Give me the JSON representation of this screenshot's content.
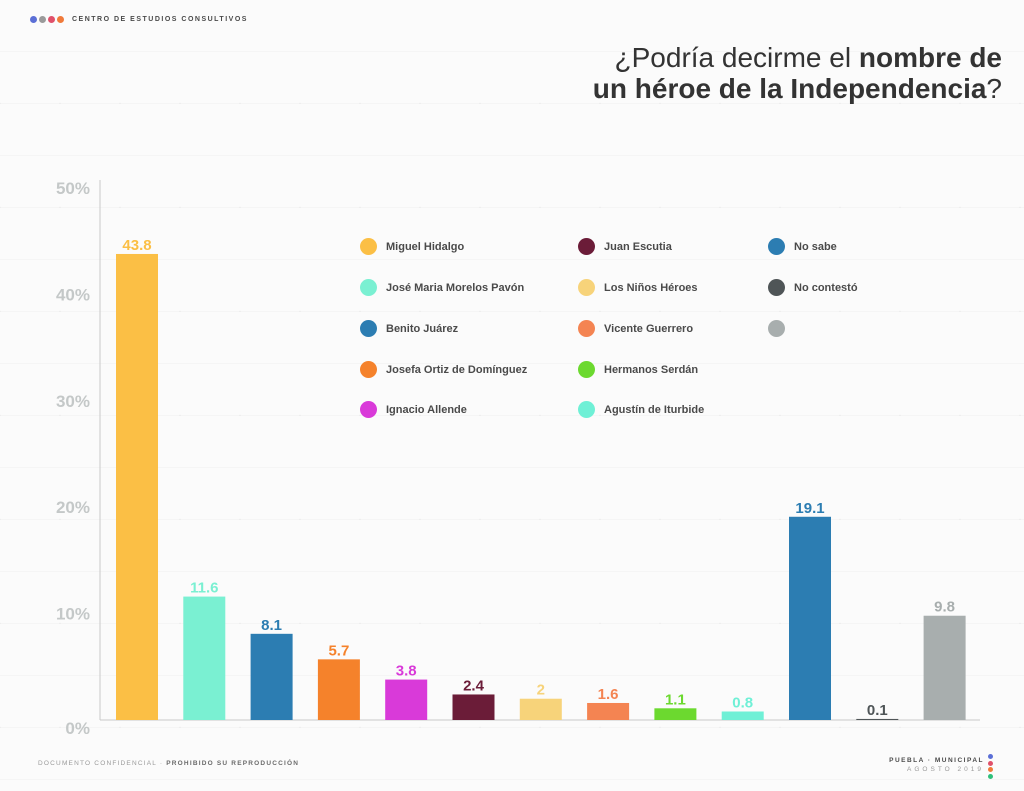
{
  "header": {
    "brand": "CENTRO DE ESTUDIOS CONSULTIVOS",
    "brand_dots": [
      "#5b6fd6",
      "#9a9a9a",
      "#e0506a",
      "#f07a3a",
      "#2fbf7a"
    ]
  },
  "title": {
    "part1": "¿Podría decirme el ",
    "part2_bold": "nombre de",
    "part3_bold": "un héroe de la Independencia",
    "part4": "?"
  },
  "chart_data": {
    "type": "bar",
    "categories": [
      "Miguel Hidalgo",
      "José Maria Morelos Pavón",
      "Benito Juárez",
      "Josefa Ortiz de Domínguez",
      "Ignacio Allende",
      "Juan Escutia",
      "Los Niños Héroes",
      "Vicente Guerrero",
      "Hermanos Serdán",
      "Agustín de Iturbide",
      "No sabe",
      "No contestó",
      ""
    ],
    "values": [
      43.8,
      11.6,
      8.1,
      5.7,
      3.8,
      2.4,
      2,
      1.6,
      1.1,
      0.8,
      19.1,
      0.1,
      9.8
    ],
    "value_labels": [
      "43.8",
      "11.6",
      "8.1",
      "5.7",
      "3.8",
      "2.4",
      "2",
      "1.6",
      "1.1",
      "0.8",
      "19.1",
      "0.1",
      "9.8"
    ],
    "colors": [
      "#fbbf45",
      "#7af0d2",
      "#2c7db2",
      "#f5822b",
      "#d93ad9",
      "#6b1c38",
      "#f7d37a",
      "#f48452",
      "#6cd92f",
      "#6ff0d6",
      "#2c7db2",
      "#4f5557",
      "#a8aeae"
    ],
    "yticks": [
      "0%",
      "10%",
      "20%",
      "30%",
      "40%",
      "50%"
    ],
    "ylim": [
      0,
      50
    ],
    "grid": false,
    "legend_position": "top-right"
  },
  "footer": {
    "left_normal": "DOCUMENTO CONFIDENCIAL · ",
    "left_bold": "PROHIBIDO SU REPRODUCCIÓN",
    "right_top": "PUEBLA · MUNICIPAL",
    "right_bottom": "AGOSTO 2019"
  }
}
